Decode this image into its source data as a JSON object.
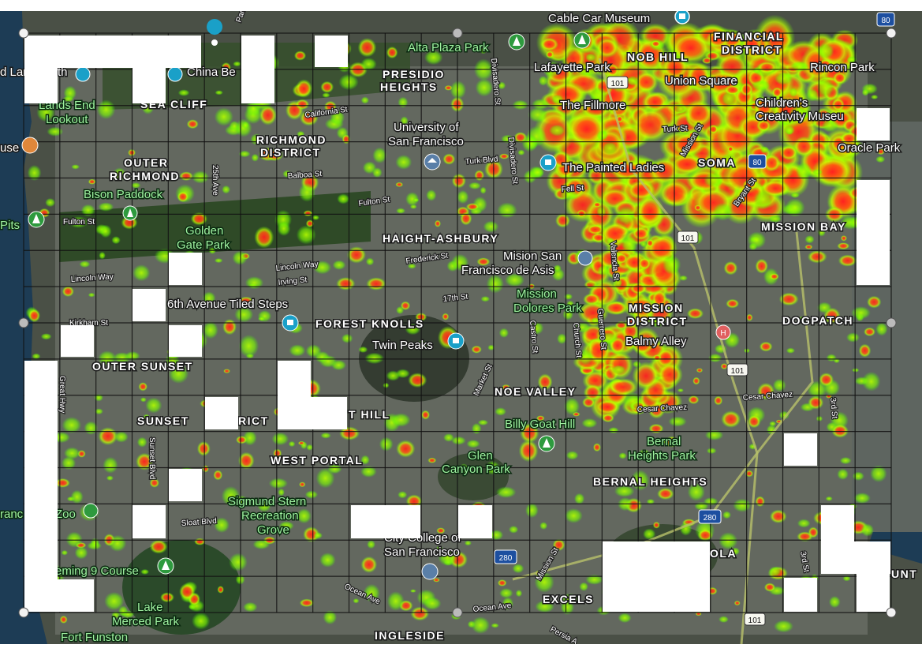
{
  "map": {
    "colors": {
      "water": "#1d3c55",
      "land": "#4a5046",
      "urban": "#6b6e66",
      "park": "#2f4a27",
      "heat_hot": "#ff2a2a",
      "heat_warm": "#a8ff00",
      "grid": "#111111",
      "mask": "#ffffff"
    },
    "districts": {
      "financial": "FINANCIAL",
      "financial_2": "DISTRICT",
      "nob_hill": "NOB HILL",
      "presidio": "PRESIDIO",
      "presidio_2": "HEIGHTS",
      "sea_cliff": "SEA CLIFF",
      "richmond": "RICHMOND",
      "richmond_2": "DISTRICT",
      "outer_richmond": "OUTER",
      "outer_richmond_2": "RICHMOND",
      "haight": "HAIGHT-ASHBURY",
      "soma": "SOMA",
      "mission_bay": "MISSION BAY",
      "forest_knolls": "FOREST KNOLLS",
      "mission": "MISSION",
      "mission_2": "DISTRICT",
      "dogpatch": "DOGPATCH",
      "outer_sunset": "OUTER SUNSET",
      "sunset": "SUNSET",
      "sunset_2": "RICT",
      "t_hill": "T HILL",
      "noe": "NOE VALLEY",
      "west_portal": "WEST PORTAL",
      "bernal": "BERNAL HEIGHTS",
      "excelsior": "EXCELS",
      "ingleside": "INGLESIDE",
      "unt": "UNT",
      "ola": "OLA"
    },
    "places": {
      "cable_car": "Cable Car Museum",
      "alta_plaza": "Alta Plaza Park",
      "lafayette": "Lafayette Park",
      "union_square": "Union Square",
      "rincon": "Rincon Park",
      "childrens": "Children's",
      "childrens_2": "Creativity Museu",
      "oracle": "Oracle Park",
      "land_end": "d Land",
      "land_end_2": "th",
      "china_beach": "China Be",
      "lands_end": "Lands End",
      "lands_end_2": "Lookout",
      "fillmore": "The Fillmore",
      "university": "University of",
      "university_2": "San Francisco",
      "painted_ladies": "The Painted Ladies",
      "use": "use",
      "bison": "Bison Paddock",
      "pits": "Pits",
      "golden_gate": "Golden",
      "golden_gate_2": "Gate Park",
      "mision": "Mision San",
      "mision_2": "Francisco de Asis",
      "mission_dolores": "Mission",
      "mission_dolores_2": "Dolores Park",
      "tiled_steps": "6th Avenue Tiled Steps",
      "twin_peaks": "Twin Peaks",
      "balmy": "Balmy Alley",
      "billy_goat": "Billy Goat Hill",
      "bernal_park": "Bernal",
      "bernal_park_2": "Heights Park",
      "glen": "Glen",
      "glen_2": "Canyon Park",
      "sigmund": "Sigmund Stern",
      "sigmund_2": "Recreation",
      "sigmund_3": "Grove",
      "ranc": "ranc",
      "zoo": "Zoo",
      "city_college": "City College of",
      "city_college_2": "San Francisco",
      "fleming": "eming 9 Course",
      "lake_merced": "Lake",
      "lake_merced_2": "Merced Park",
      "fort_funston": "Fort Funston"
    },
    "roads": {
      "california": "California St",
      "turk": "Turk Blvd",
      "turk_st": "Turk St",
      "balboa": "Balboa St",
      "fulton": "Fulton St",
      "fulton_w": "Fulton St",
      "fell": "Fell St",
      "frederick": "Frederick St",
      "lincoln": "Lincoln Way",
      "lincoln_w": "Lincoln Way",
      "irving": "Irving St",
      "seventeenth": "17th St",
      "kirkham": "Kirkham St",
      "cesar": "Cesar Chavez",
      "cesar_2": "Cesar Chavez",
      "sloat": "Sloat Blvd",
      "ocean": "Ocean Ave",
      "ocean_2": "Ocean Ave",
      "persia": "Persia A",
      "ave25": "25th Ave",
      "great_hwy": "Great Hwy",
      "sunset_blvd": "Sunset Blvd",
      "divisadero": "Divisadero St",
      "divisadero_2": "Divisadero St",
      "castro": "Castro St",
      "church": "Church St",
      "valencia": "Valencia St",
      "guerrero": "Guerrero St",
      "market": "Market St",
      "mission_st": "Mission St",
      "third": "3rd St",
      "third_2": "3rd St",
      "bryant": "Bryant St",
      "mission_st_2": "Mission St",
      "park_blvd": "Park Blvd"
    },
    "shields": {
      "i80_top": "80",
      "i80_mid": "80",
      "us101_a": "101",
      "us101_b": "101",
      "us101_c": "101",
      "us101_d": "101",
      "i280_a": "280",
      "i280_b": "280"
    }
  }
}
